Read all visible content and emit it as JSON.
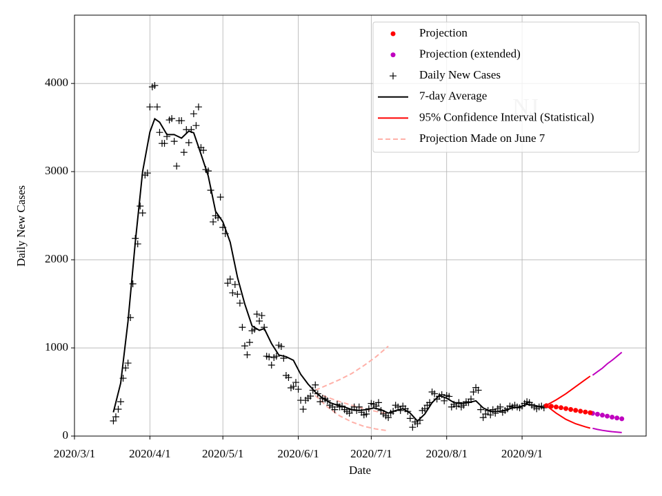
{
  "chart_data": {
    "type": "line",
    "x_label": "Date",
    "y_label": "Daily New Cases",
    "annotation": "NJ",
    "xlim": [
      "2020-03-01",
      "2020-10-22"
    ],
    "xticks": [
      {
        "value": "2020-03-01",
        "label": "2020/3/1"
      },
      {
        "value": "2020-04-01",
        "label": "2020/4/1"
      },
      {
        "value": "2020-05-01",
        "label": "2020/5/1"
      },
      {
        "value": "2020-06-01",
        "label": "2020/6/1"
      },
      {
        "value": "2020-07-01",
        "label": "2020/7/1"
      },
      {
        "value": "2020-08-01",
        "label": "2020/8/1"
      },
      {
        "value": "2020-09-01",
        "label": "2020/9/1"
      }
    ],
    "ylim": [
      0,
      4775
    ],
    "yticks": [
      0,
      1000,
      2000,
      3000,
      4000
    ],
    "grid": true,
    "legend": "upper right",
    "series": [
      {
        "name": "Projection",
        "style": "dots",
        "color": "#ff0000",
        "x": [
          "2020-09-11",
          "2020-09-13",
          "2020-09-15",
          "2020-09-17",
          "2020-09-19",
          "2020-09-21",
          "2020-09-23",
          "2020-09-25",
          "2020-09-27",
          "2020-09-29"
        ],
        "values": [
          345,
          338,
          330,
          322,
          312,
          302,
          292,
          282,
          273,
          265
        ]
      },
      {
        "name": "Projection (extended)",
        "style": "dots",
        "color": "#bf00bf",
        "x": [
          "2020-09-30",
          "2020-10-02",
          "2020-10-04",
          "2020-10-06",
          "2020-10-08",
          "2020-10-10",
          "2020-10-12"
        ],
        "values": [
          258,
          248,
          237,
          226,
          215,
          205,
          196
        ],
        "ci_upper": [
          690,
          730,
          770,
          820,
          860,
          905,
          950
        ],
        "ci_lower": [
          88,
          75,
          65,
          57,
          50,
          45,
          40
        ]
      },
      {
        "name": "Daily New Cases",
        "style": "plus",
        "color": "#000000",
        "x": [
          "2020-03-17",
          "2020-03-18",
          "2020-03-19",
          "2020-03-20",
          "2020-03-21",
          "2020-03-22",
          "2020-03-23",
          "2020-03-24",
          "2020-03-25",
          "2020-03-26",
          "2020-03-27",
          "2020-03-28",
          "2020-03-29",
          "2020-03-30",
          "2020-03-31",
          "2020-04-01",
          "2020-04-02",
          "2020-04-03",
          "2020-04-04",
          "2020-04-05",
          "2020-04-06",
          "2020-04-07",
          "2020-04-08",
          "2020-04-09",
          "2020-04-10",
          "2020-04-11",
          "2020-04-12",
          "2020-04-13",
          "2020-04-14",
          "2020-04-15",
          "2020-04-16",
          "2020-04-17",
          "2020-04-18",
          "2020-04-19",
          "2020-04-20",
          "2020-04-21",
          "2020-04-22",
          "2020-04-23",
          "2020-04-24",
          "2020-04-25",
          "2020-04-26",
          "2020-04-27",
          "2020-04-28",
          "2020-04-29",
          "2020-04-30",
          "2020-05-01",
          "2020-05-02",
          "2020-05-03",
          "2020-05-04",
          "2020-05-05",
          "2020-05-06",
          "2020-05-07",
          "2020-05-08",
          "2020-05-09",
          "2020-05-10",
          "2020-05-11",
          "2020-05-12",
          "2020-05-13",
          "2020-05-14",
          "2020-05-15",
          "2020-05-16",
          "2020-05-17",
          "2020-05-18",
          "2020-05-19",
          "2020-05-20",
          "2020-05-21",
          "2020-05-22",
          "2020-05-23",
          "2020-05-24",
          "2020-05-25",
          "2020-05-26",
          "2020-05-27",
          "2020-05-28",
          "2020-05-29",
          "2020-05-30",
          "2020-05-31",
          "2020-06-01",
          "2020-06-02",
          "2020-06-03",
          "2020-06-04",
          "2020-06-05",
          "2020-06-06",
          "2020-06-07",
          "2020-06-08",
          "2020-06-09",
          "2020-06-10",
          "2020-06-11",
          "2020-06-12",
          "2020-06-13",
          "2020-06-14",
          "2020-06-15",
          "2020-06-16",
          "2020-06-17",
          "2020-06-18",
          "2020-06-19",
          "2020-06-20",
          "2020-06-21",
          "2020-06-22",
          "2020-06-23",
          "2020-06-24",
          "2020-06-25",
          "2020-06-26",
          "2020-06-27",
          "2020-06-28",
          "2020-06-29",
          "2020-06-30",
          "2020-07-01",
          "2020-07-02",
          "2020-07-03",
          "2020-07-04",
          "2020-07-05",
          "2020-07-06",
          "2020-07-07",
          "2020-07-08",
          "2020-07-09",
          "2020-07-10",
          "2020-07-11",
          "2020-07-12",
          "2020-07-13",
          "2020-07-14",
          "2020-07-15",
          "2020-07-16",
          "2020-07-17",
          "2020-07-18",
          "2020-07-19",
          "2020-07-20",
          "2020-07-21",
          "2020-07-22",
          "2020-07-23",
          "2020-07-24",
          "2020-07-25",
          "2020-07-26",
          "2020-07-27",
          "2020-07-28",
          "2020-07-29",
          "2020-07-30",
          "2020-07-31",
          "2020-08-01",
          "2020-08-02",
          "2020-08-03",
          "2020-08-04",
          "2020-08-05",
          "2020-08-06",
          "2020-08-07",
          "2020-08-08",
          "2020-08-09",
          "2020-08-10",
          "2020-08-11",
          "2020-08-12",
          "2020-08-13",
          "2020-08-14",
          "2020-08-15",
          "2020-08-16",
          "2020-08-17",
          "2020-08-18",
          "2020-08-19",
          "2020-08-20",
          "2020-08-21",
          "2020-08-22",
          "2020-08-23",
          "2020-08-24",
          "2020-08-25",
          "2020-08-26",
          "2020-08-27",
          "2020-08-28",
          "2020-08-29",
          "2020-08-30",
          "2020-08-31",
          "2020-09-01",
          "2020-09-02",
          "2020-09-03",
          "2020-09-04",
          "2020-09-05",
          "2020-09-06",
          "2020-09-07",
          "2020-09-08",
          "2020-09-09",
          "2020-09-10"
        ],
        "values": [
          172,
          219,
          305,
          390,
          656,
          773,
          828,
          1344,
          1727,
          2242,
          2180,
          2609,
          2531,
          2961,
          2984,
          3734,
          3961,
          3977,
          3734,
          3445,
          3320,
          3320,
          3398,
          3586,
          3602,
          3344,
          3063,
          3578,
          3578,
          3219,
          3477,
          3328,
          3477,
          3656,
          3523,
          3734,
          3273,
          3242,
          3023,
          3008,
          2789,
          2430,
          2500,
          2477,
          2711,
          2367,
          2297,
          1734,
          1781,
          1625,
          1719,
          1609,
          1508,
          1234,
          1023,
          922,
          1063,
          1195,
          1211,
          1383,
          1305,
          1367,
          1234,
          906,
          898,
          805,
          891,
          906,
          1031,
          1016,
          883,
          688,
          664,
          547,
          563,
          609,
          531,
          406,
          305,
          406,
          430,
          453,
          520,
          580,
          480,
          390,
          430,
          420,
          400,
          350,
          330,
          300,
          360,
          330,
          340,
          300,
          280,
          260,
          300,
          330,
          290,
          330,
          270,
          240,
          250,
          310,
          370,
          360,
          340,
          380,
          290,
          250,
          230,
          210,
          260,
          280,
          350,
          330,
          290,
          340,
          310,
          280,
          200,
          100,
          160,
          140,
          180,
          290,
          310,
          350,
          380,
          500,
          480,
          420,
          450,
          470,
          400,
          460,
          450,
          330,
          360,
          340,
          380,
          330,
          350,
          390,
          380,
          420,
          500,
          550,
          520,
          300,
          210,
          250,
          290,
          240,
          300,
          260,
          310,
          330,
          270,
          290,
          310,
          340,
          330,
          350,
          330,
          320,
          340,
          370,
          390,
          380,
          350,
          330,
          310,
          330,
          340,
          320
        ]
      },
      {
        "name": "7-day Average",
        "style": "line",
        "color": "#000000",
        "x": [
          "2020-03-17",
          "2020-03-20",
          "2020-03-23",
          "2020-03-26",
          "2020-03-29",
          "2020-04-01",
          "2020-04-03",
          "2020-04-05",
          "2020-04-08",
          "2020-04-11",
          "2020-04-14",
          "2020-04-17",
          "2020-04-19",
          "2020-04-22",
          "2020-04-25",
          "2020-04-28",
          "2020-05-01",
          "2020-05-04",
          "2020-05-07",
          "2020-05-10",
          "2020-05-13",
          "2020-05-16",
          "2020-05-18",
          "2020-05-21",
          "2020-05-24",
          "2020-05-27",
          "2020-05-30",
          "2020-06-02",
          "2020-06-05",
          "2020-06-08",
          "2020-06-11",
          "2020-06-14",
          "2020-06-17",
          "2020-06-20",
          "2020-06-23",
          "2020-06-26",
          "2020-06-29",
          "2020-07-02",
          "2020-07-05",
          "2020-07-08",
          "2020-07-11",
          "2020-07-14",
          "2020-07-17",
          "2020-07-20",
          "2020-07-23",
          "2020-07-26",
          "2020-07-29",
          "2020-08-01",
          "2020-08-04",
          "2020-08-07",
          "2020-08-10",
          "2020-08-13",
          "2020-08-16",
          "2020-08-19",
          "2020-08-22",
          "2020-08-25",
          "2020-08-28",
          "2020-08-31",
          "2020-09-03",
          "2020-09-06",
          "2020-09-10"
        ],
        "values": [
          270,
          600,
          1300,
          2200,
          3000,
          3450,
          3600,
          3560,
          3420,
          3420,
          3380,
          3460,
          3440,
          3200,
          2950,
          2550,
          2430,
          2200,
          1800,
          1500,
          1250,
          1200,
          1220,
          1050,
          920,
          900,
          860,
          700,
          590,
          500,
          430,
          380,
          350,
          330,
          300,
          290,
          300,
          320,
          300,
          260,
          290,
          310,
          260,
          170,
          250,
          380,
          460,
          430,
          380,
          370,
          380,
          400,
          320,
          280,
          280,
          290,
          320,
          330,
          360,
          350,
          320
        ]
      },
      {
        "name": "95% Confidence Interval (Statistical)",
        "style": "band",
        "color": "#ff0000",
        "x": [
          "2020-09-11",
          "2020-09-15",
          "2020-09-19",
          "2020-09-23",
          "2020-09-27",
          "2020-09-29"
        ],
        "upper": [
          350,
          410,
          480,
          560,
          640,
          680
        ],
        "lower": [
          345,
          260,
          190,
          140,
          105,
          90
        ]
      },
      {
        "name": "Projection Made on June 7",
        "style": "dashed",
        "color": "#ffb0a8",
        "x": [
          "2020-06-08",
          "2020-06-13",
          "2020-06-18",
          "2020-06-23",
          "2020-06-28",
          "2020-07-03",
          "2020-07-08"
        ],
        "values": [
          490,
          440,
          390,
          350,
          310,
          280,
          250
        ],
        "upper": [
          520,
          580,
          640,
          710,
          800,
          900,
          1020
        ],
        "lower": [
          460,
          330,
          230,
          160,
          110,
          80,
          60
        ]
      }
    ]
  }
}
